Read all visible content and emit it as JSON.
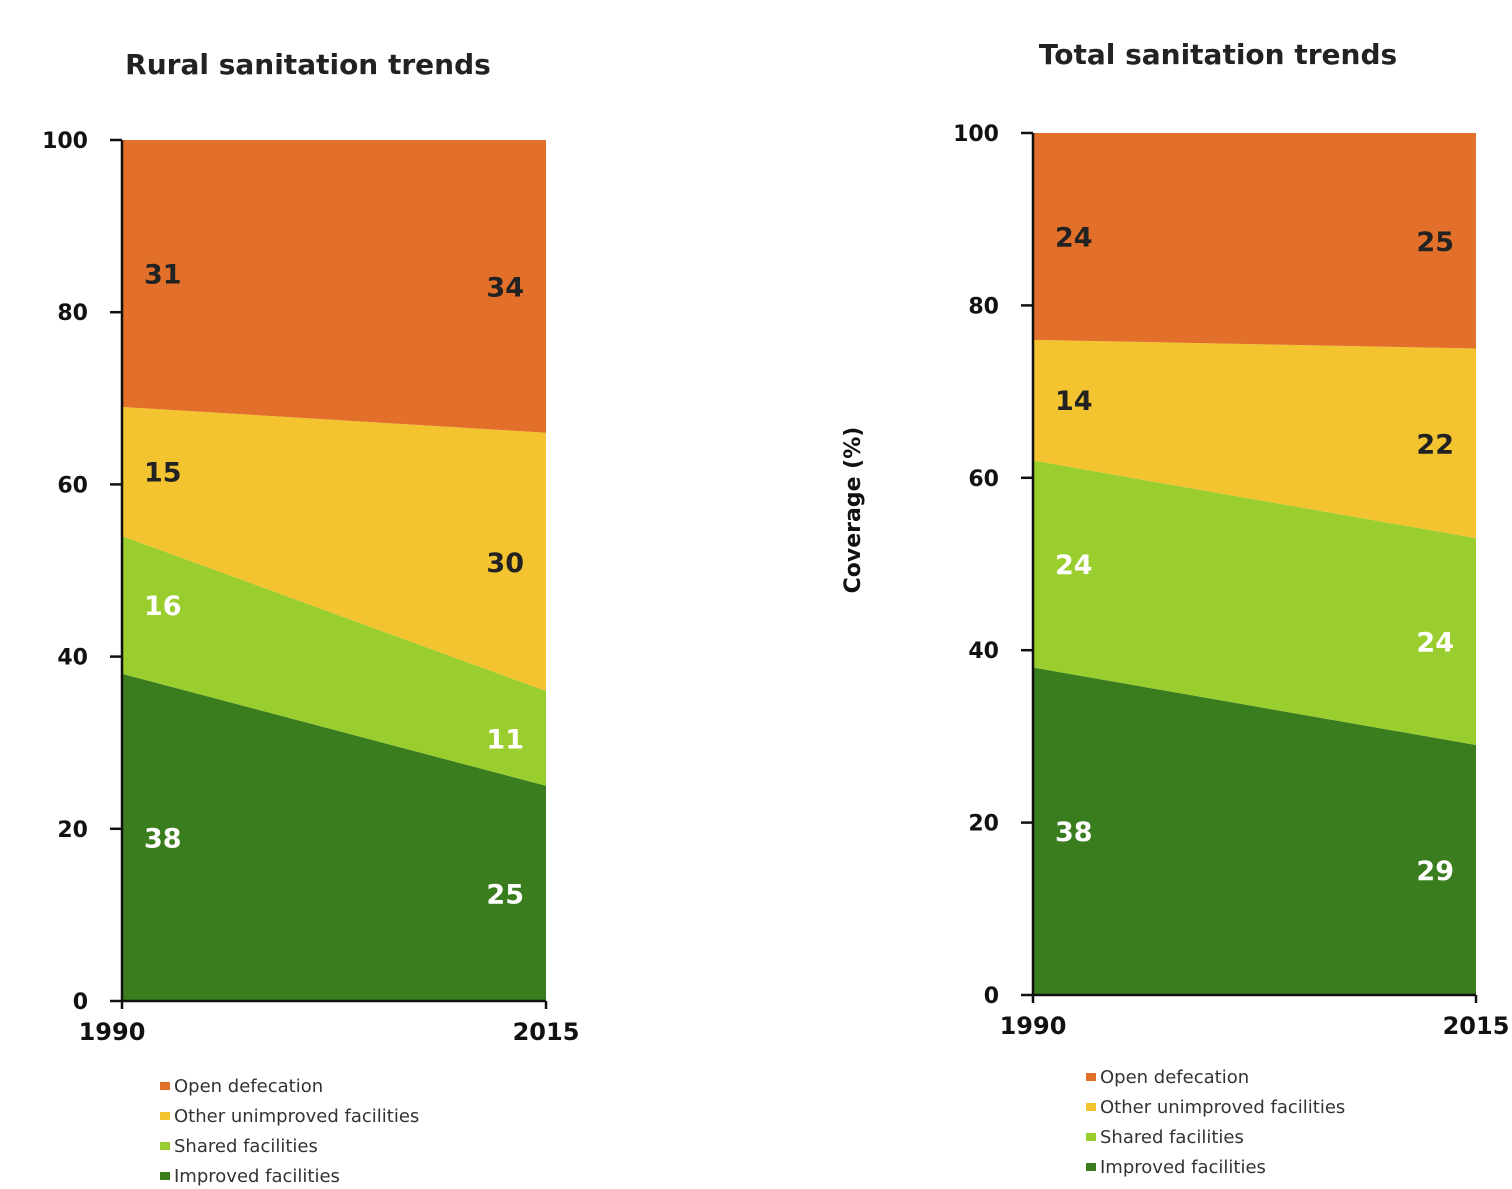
{
  "chart_data": [
    {
      "type": "area",
      "title": "Rural sanitation trends",
      "x": [
        "1990",
        "2015"
      ],
      "ylim": [
        0,
        100
      ],
      "yticks": [
        "0",
        "20",
        "40",
        "60",
        "80",
        "100"
      ],
      "ylabel": "",
      "stacked": true,
      "series": [
        {
          "name": "Improved facilities",
          "values": [
            38,
            25
          ],
          "color": "#3A7D1E",
          "label_color": "#FFFFFF"
        },
        {
          "name": "Shared facilities",
          "values": [
            16,
            11
          ],
          "color": "#9ACD2E",
          "label_color": "#FFFFFF"
        },
        {
          "name": "Other unimproved facilities",
          "values": [
            15,
            30
          ],
          "color": "#F4C430",
          "label_color": "#222222"
        },
        {
          "name": "Open defecation",
          "values": [
            31,
            34
          ],
          "color": "#E2702A",
          "label_color": "#222222"
        }
      ],
      "legend_position": "bottom",
      "grid": false
    },
    {
      "type": "area",
      "title": "Total sanitation trends",
      "x": [
        "1990",
        "2015"
      ],
      "ylim": [
        0,
        100
      ],
      "yticks": [
        "0",
        "20",
        "40",
        "60",
        "80",
        "100"
      ],
      "ylabel": "Coverage (%)",
      "stacked": true,
      "series": [
        {
          "name": "Improved facilities",
          "values": [
            38,
            29
          ],
          "color": "#3A7D1E",
          "label_color": "#FFFFFF"
        },
        {
          "name": "Shared facilities",
          "values": [
            24,
            24
          ],
          "color": "#9ACD2E",
          "label_color": "#FFFFFF"
        },
        {
          "name": "Other unimproved facilities",
          "values": [
            14,
            22
          ],
          "color": "#F4C430",
          "label_color": "#222222"
        },
        {
          "name": "Open defecation",
          "values": [
            24,
            25
          ],
          "color": "#E2702A",
          "label_color": "#222222"
        }
      ],
      "legend_position": "bottom",
      "grid": false
    }
  ]
}
